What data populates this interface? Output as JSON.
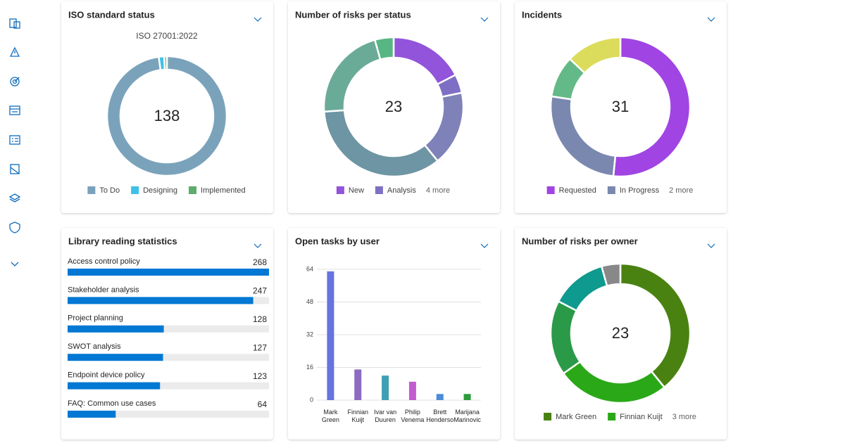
{
  "chart_data": [
    {
      "type": "donut",
      "title": "ISO standard status",
      "subtitle": "ISO 27001:2022",
      "total": 138,
      "categories": [
        "To Do",
        "Designing",
        "Implemented"
      ],
      "values": [
        135,
        2,
        1
      ],
      "colors": [
        "#7aa3bb",
        "#3ec1e8",
        "#5cad6a"
      ]
    },
    {
      "type": "donut",
      "title": "Number of risks per status",
      "total": 23,
      "categories": [
        "New",
        "Analysis",
        null,
        null,
        null,
        null
      ],
      "values": [
        4,
        1,
        4,
        8,
        5,
        1
      ],
      "colors": [
        "#9254da",
        "#7f6fc4",
        "#7f82b8",
        "#6e95a3",
        "#6aab98",
        "#58b682"
      ],
      "legend_more": "4 more"
    },
    {
      "type": "donut",
      "title": "Incidents",
      "total": 31,
      "categories": [
        "Requested",
        "In Progress",
        null,
        null
      ],
      "values": [
        16,
        8,
        3,
        4
      ],
      "colors": [
        "#a044e4",
        "#7a88b0",
        "#63b987",
        "#dcdc5c"
      ],
      "legend_more": "2 more"
    },
    {
      "type": "hbar",
      "title": "Library reading statistics",
      "categories": [
        "Access control policy",
        "Stakeholder analysis",
        "Project planning",
        "SWOT analysis",
        "Endpoint device policy",
        "FAQ: Common use cases"
      ],
      "values": [
        268,
        247,
        128,
        127,
        123,
        64
      ],
      "xlim": [
        0,
        268
      ],
      "color": "#0078d4"
    },
    {
      "type": "bar",
      "title": "Open tasks by user",
      "categories": [
        "Mark Green",
        "Finnian Kuijt",
        "Ivar van Duuren",
        "Philip Venema",
        "Brett Henderso",
        "Marijana Marinovic"
      ],
      "values": [
        63,
        15,
        12,
        9,
        3,
        3
      ],
      "colors": [
        "#6673e0",
        "#8c6cc0",
        "#3f9fb3",
        "#c35bd0",
        "#4a8cd8",
        "#2f9a3c"
      ],
      "ylim": [
        0,
        64
      ],
      "yticks": [
        0,
        16,
        32,
        48,
        64
      ],
      "grid": true
    },
    {
      "type": "donut",
      "title": "Number of risks per owner",
      "total": 23,
      "categories": [
        "Mark Green",
        "Finnian Kuijt",
        null,
        null,
        null
      ],
      "values": [
        9,
        6,
        4,
        3,
        1
      ],
      "colors": [
        "#4a8212",
        "#2aa818",
        "#2b9a48",
        "#0e9a8e",
        "#888888"
      ],
      "legend_more": "3 more"
    }
  ]
}
